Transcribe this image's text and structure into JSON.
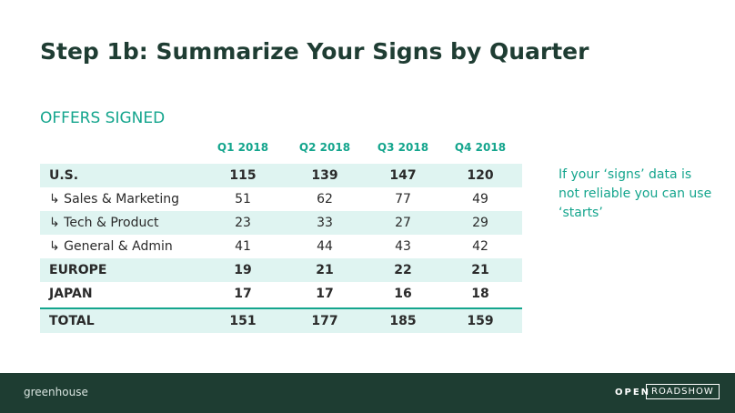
{
  "header": {
    "title": "Step 1b: Summarize Your Signs by Quarter"
  },
  "section": "OFFERS SIGNED",
  "table": {
    "columns": [
      "Q1 2018",
      "Q2 2018",
      "Q3 2018",
      "Q4 2018"
    ],
    "rows": [
      {
        "label": "U.S.",
        "values": [
          115,
          139,
          147,
          120
        ],
        "bold": true
      },
      {
        "label": "↳ Sales & Marketing",
        "values": [
          51,
          62,
          77,
          49
        ],
        "bold": false
      },
      {
        "label": "↳ Tech & Product",
        "values": [
          23,
          33,
          27,
          29
        ],
        "bold": false
      },
      {
        "label": "↳ General & Admin",
        "values": [
          41,
          44,
          43,
          42
        ],
        "bold": false
      },
      {
        "label": "EUROPE",
        "values": [
          19,
          21,
          22,
          21
        ],
        "bold": true
      },
      {
        "label": "JAPAN",
        "values": [
          17,
          17,
          16,
          18
        ],
        "bold": true
      }
    ],
    "total": {
      "label": "TOTAL",
      "values": [
        151,
        177,
        185,
        159
      ]
    }
  },
  "note": "If your ‘signs’ data is not reliable you can use ‘starts’",
  "footer": {
    "logo": "greenhouse",
    "badge_left": "OPEN",
    "badge_right": "ROADSHOW"
  }
}
